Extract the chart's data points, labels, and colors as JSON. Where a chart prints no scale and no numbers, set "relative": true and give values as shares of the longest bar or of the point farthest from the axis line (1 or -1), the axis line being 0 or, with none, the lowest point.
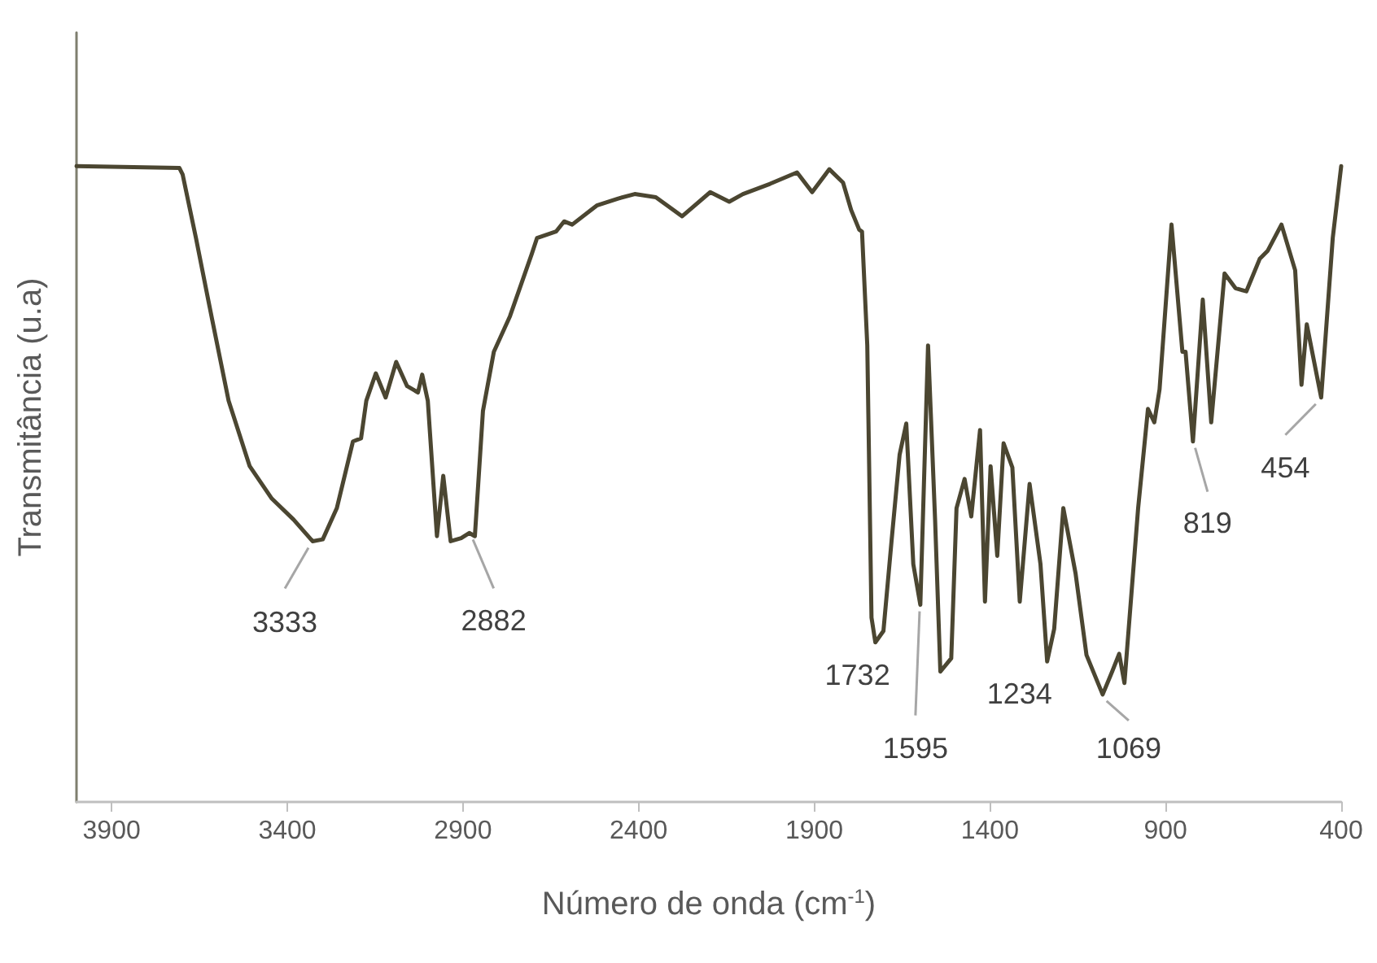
{
  "chart_data": {
    "type": "line",
    "relative": true,
    "xlabel": "Número de onda (cm$^{-1}$)",
    "ylabel": "Transmitância (u.a)",
    "xlim": [
      4000,
      400
    ],
    "xticks": [
      3900,
      3400,
      2900,
      2400,
      1900,
      1400,
      900,
      400
    ],
    "marker": "none",
    "line_style": "solid",
    "series": [
      {
        "color": "#4b4631",
        "x": [
          4000,
          3707,
          3698,
          3660,
          3614,
          3567,
          3507,
          3444,
          3382,
          3328,
          3299,
          3259,
          3213,
          3190,
          3175,
          3148,
          3120,
          3090,
          3059,
          3028,
          3016,
          3000,
          2974,
          2956,
          2935,
          2905,
          2882,
          2866,
          2843,
          2812,
          2766,
          2704,
          2689,
          2635,
          2612,
          2589,
          2519,
          2458,
          2411,
          2351,
          2276,
          2196,
          2142,
          2103,
          2026,
          1949,
          1906,
          1857,
          1818,
          1795,
          1772,
          1764,
          1749,
          1737,
          1726,
          1703,
          1680,
          1657,
          1638,
          1618,
          1598,
          1576,
          1556,
          1541,
          1510,
          1495,
          1472,
          1453,
          1428,
          1414,
          1398,
          1379,
          1361,
          1336,
          1315,
          1287,
          1256,
          1237,
          1217,
          1191,
          1156,
          1125,
          1079,
          1052,
          1032,
          1017,
          978,
          950,
          932,
          917,
          883,
          852,
          843,
          822,
          794,
          770,
          732,
          701,
          670,
          632,
          609,
          570,
          531,
          513,
          498,
          457,
          424,
          400
        ],
        "values": [
          1.0,
          0.997,
          0.987,
          0.887,
          0.759,
          0.631,
          0.528,
          0.477,
          0.444,
          0.41,
          0.413,
          0.462,
          0.567,
          0.572,
          0.631,
          0.674,
          0.636,
          0.692,
          0.654,
          0.644,
          0.672,
          0.631,
          0.418,
          0.513,
          0.41,
          0.415,
          0.423,
          0.418,
          0.615,
          0.708,
          0.764,
          0.862,
          0.887,
          0.897,
          0.913,
          0.908,
          0.938,
          0.949,
          0.956,
          0.951,
          0.921,
          0.959,
          0.944,
          0.956,
          0.972,
          0.99,
          0.959,
          0.995,
          0.974,
          0.931,
          0.9,
          0.897,
          0.718,
          0.29,
          0.251,
          0.269,
          0.41,
          0.546,
          0.595,
          0.374,
          0.31,
          0.718,
          0.444,
          0.205,
          0.226,
          0.462,
          0.508,
          0.449,
          0.585,
          0.315,
          0.528,
          0.387,
          0.564,
          0.526,
          0.315,
          0.5,
          0.374,
          0.221,
          0.272,
          0.462,
          0.359,
          0.231,
          0.169,
          0.205,
          0.233,
          0.187,
          0.462,
          0.618,
          0.597,
          0.649,
          0.908,
          0.708,
          0.708,
          0.567,
          0.79,
          0.597,
          0.831,
          0.808,
          0.803,
          0.854,
          0.867,
          0.908,
          0.836,
          0.656,
          0.751,
          0.636,
          0.887,
          1.0
        ]
      }
    ],
    "annotations": [
      {
        "text": "3333",
        "x": 3328,
        "y": 0.41
      },
      {
        "text": "2882",
        "x": 2882,
        "y": 0.423
      },
      {
        "text": "1732",
        "x": 1726,
        "y": 0.251
      },
      {
        "text": "1595",
        "x": 1598,
        "y": 0.31
      },
      {
        "text": "1234",
        "x": 1237,
        "y": 0.221
      },
      {
        "text": "1069",
        "x": 1079,
        "y": 0.169
      },
      {
        "text": "819",
        "x": 822,
        "y": 0.567
      },
      {
        "text": "454",
        "x": 457,
        "y": 0.636
      }
    ]
  }
}
